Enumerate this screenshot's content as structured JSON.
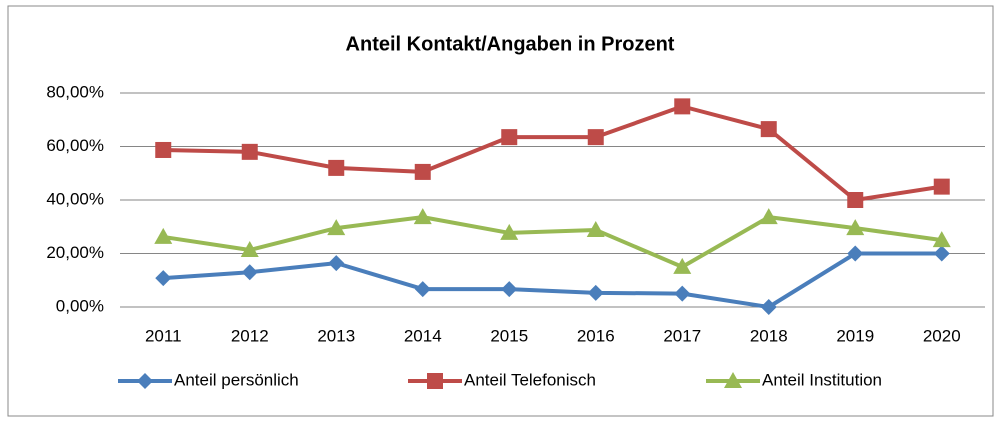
{
  "chart_data": {
    "type": "line",
    "title": "Anteil Kontakt/Angaben in Prozent",
    "categories": [
      "2011",
      "2012",
      "2013",
      "2014",
      "2015",
      "2016",
      "2017",
      "2018",
      "2019",
      "2020"
    ],
    "series": [
      {
        "name": "Anteil persönlich",
        "color": "#4a7ebb",
        "marker": "diamond",
        "values": [
          10.8,
          13,
          16.4,
          6.7,
          6.7,
          5.3,
          5,
          0,
          20,
          20
        ]
      },
      {
        "name": "Anteil Telefonisch",
        "color": "#be4b48",
        "marker": "square",
        "values": [
          58.7,
          58,
          52,
          50.5,
          63.5,
          63.5,
          75,
          66.5,
          40,
          45
        ]
      },
      {
        "name": "Anteil Institution",
        "color": "#98b954",
        "marker": "triangle",
        "values": [
          26.2,
          21.3,
          29.5,
          33.6,
          27.7,
          28.8,
          15,
          33.6,
          29.5,
          25
        ]
      }
    ],
    "ylim": [
      0,
      80
    ],
    "yticks": [
      {
        "value": 0,
        "label": "0,00%"
      },
      {
        "value": 20,
        "label": "20,00%"
      },
      {
        "value": 40,
        "label": "40,00%"
      },
      {
        "value": 60,
        "label": "60,00%"
      },
      {
        "value": 80,
        "label": "80,00%"
      }
    ],
    "grid": true,
    "legend": "bottom"
  }
}
